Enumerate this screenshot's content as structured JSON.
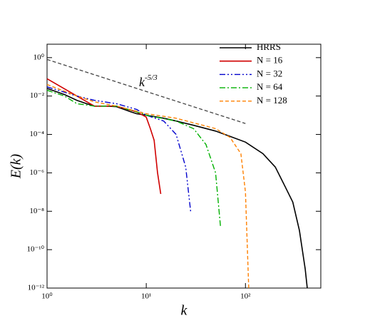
{
  "chart_data": {
    "type": "line",
    "xlabel": "k",
    "ylabel": "E(k)",
    "annotation": {
      "base": "k",
      "exponent": "-5/3"
    },
    "log_x": true,
    "log_y": true,
    "xlim": [
      1,
      575
    ],
    "ylim": [
      1e-12,
      5
    ],
    "xticks": [
      {
        "value": 1,
        "label": "10⁰"
      },
      {
        "value": 10,
        "label": "10¹"
      },
      {
        "value": 100,
        "label": "10²"
      }
    ],
    "yticks": [
      {
        "value": 1,
        "label": "10⁰"
      },
      {
        "value": 0.01,
        "label": "10⁻²"
      },
      {
        "value": 0.0001,
        "label": "10⁻⁴"
      },
      {
        "value": 1e-06,
        "label": "10⁻⁶"
      },
      {
        "value": 1e-08,
        "label": "10⁻⁸"
      },
      {
        "value": 1e-10,
        "label": "10⁻¹⁰"
      },
      {
        "value": 1e-12,
        "label": "10⁻¹²"
      }
    ],
    "legend_position": "upper right",
    "reference_line": {
      "x": [
        1,
        100
      ],
      "values": [
        0.8,
        0.00037
      ],
      "color": "#444444"
    },
    "series": [
      {
        "name": "HRRS",
        "color": "#000000",
        "x": [
          1,
          1.5,
          2,
          2.5,
          3,
          4,
          5,
          6,
          7,
          8,
          10,
          15,
          20,
          30,
          50,
          70,
          100,
          150,
          200,
          250,
          300,
          350,
          400,
          420
        ],
        "values": [
          0.025,
          0.012,
          0.006,
          0.004,
          0.003,
          0.003,
          0.0028,
          0.002,
          0.0015,
          0.0012,
          0.001,
          0.0007,
          0.0005,
          0.0003,
          0.00015,
          8e-05,
          4e-05,
          1e-05,
          2e-06,
          2e-07,
          3e-08,
          1e-09,
          1e-11,
          1e-12
        ]
      },
      {
        "name": "N = 16",
        "color": "#d00000",
        "x": [
          1,
          2,
          3,
          5,
          8,
          10,
          11,
          12,
          13,
          14
        ],
        "values": [
          0.08,
          0.01,
          0.003,
          0.003,
          0.0015,
          0.0008,
          0.0002,
          5e-05,
          1e-06,
          8e-08
        ]
      },
      {
        "name": "N = 32",
        "color": "#0000cc",
        "x": [
          1,
          2,
          3,
          5,
          8,
          10,
          15,
          20,
          25,
          28
        ],
        "values": [
          0.03,
          0.01,
          0.006,
          0.004,
          0.002,
          0.001,
          0.0005,
          0.0001,
          2e-06,
          1e-08
        ]
      },
      {
        "name": "N = 64",
        "color": "#00b000",
        "x": [
          1,
          1.5,
          2,
          3,
          5,
          8,
          10,
          20,
          30,
          40,
          50,
          56
        ],
        "values": [
          0.02,
          0.01,
          0.004,
          0.003,
          0.003,
          0.0015,
          0.001,
          0.0005,
          0.0002,
          3e-05,
          1e-06,
          1.6e-09
        ]
      },
      {
        "name": "N = 128",
        "color": "#ff8000",
        "x": [
          1,
          2,
          3,
          5,
          10,
          20,
          30,
          50,
          70,
          90,
          100,
          108
        ],
        "values": [
          0.04,
          0.01,
          0.005,
          0.003,
          0.0012,
          0.0007,
          0.0004,
          0.0002,
          7e-05,
          1e-05,
          1e-07,
          1e-12
        ]
      }
    ]
  }
}
